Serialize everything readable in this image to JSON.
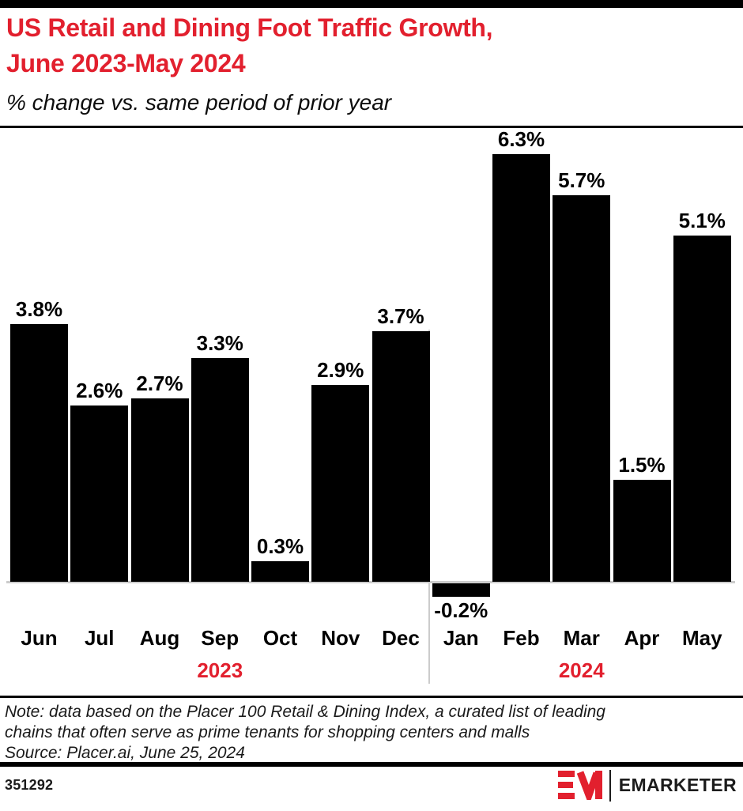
{
  "header": {
    "title": "US Retail and Dining Foot Traffic Growth,\nJune 2023-May 2024",
    "subtitle": "% change vs. same period of prior year"
  },
  "chart_data": {
    "type": "bar",
    "title": "US Retail and Dining Foot Traffic Growth, June 2023-May 2024",
    "subtitle_unit": "% change vs. same period of prior year",
    "categories": [
      "Jun",
      "Jul",
      "Aug",
      "Sep",
      "Oct",
      "Nov",
      "Dec",
      "Jan",
      "Feb",
      "Mar",
      "Apr",
      "May"
    ],
    "values": [
      3.8,
      2.6,
      2.7,
      3.3,
      0.3,
      2.9,
      3.7,
      -0.2,
      6.3,
      5.7,
      1.5,
      5.1
    ],
    "labels": [
      "3.8%",
      "2.6%",
      "2.7%",
      "3.3%",
      "0.3%",
      "2.9%",
      "3.7%",
      "-0.2%",
      "6.3%",
      "5.7%",
      "1.5%",
      "5.1%"
    ],
    "year_groups": [
      {
        "label": "2023",
        "span": [
          0,
          6
        ]
      },
      {
        "label": "2024",
        "span": [
          7,
          11
        ]
      }
    ],
    "ylim": [
      -0.5,
      6.6
    ],
    "grid": false,
    "legend": false,
    "bar_color": "#000000",
    "year_label_color": "#e2202e",
    "axis_color": "#cccccc"
  },
  "note": {
    "note_text": "Note: data based on the Placer 100 Retail & Dining Index, a curated list of leading\nchains that often serve as prime tenants for shopping centers and malls",
    "source_text": "Source: Placer.ai, June 25, 2024"
  },
  "footer": {
    "chart_id": "351292",
    "brand": "EMARKETER",
    "logo_monogram": "EM"
  },
  "colors": {
    "accent_red": "#e2202e",
    "bar_black": "#000000",
    "axis_gray": "#cccccc"
  }
}
